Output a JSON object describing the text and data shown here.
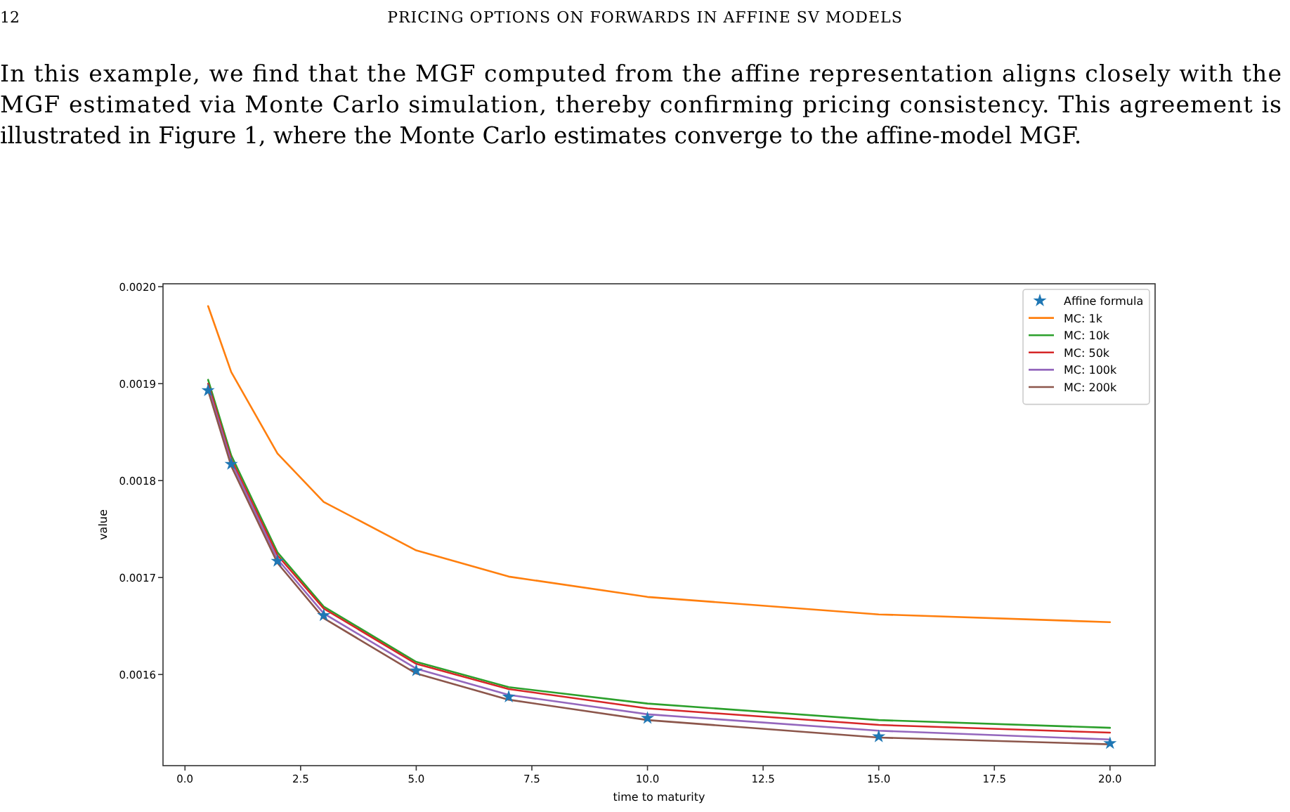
{
  "chart_data": {
    "type": "line",
    "xlabel": "time to maturity",
    "ylabel": "value",
    "annotations": [
      "12",
      "PRICING OPTIONS ON FORWARDS IN AFFINE SV MODELS",
      "In this example, we find that the MGF computed from the affine representation aligns closely with the MGF estimated via Monte Carlo simulation, thereby confirming pricing consistency. This agreement is illustrated in Figure 1, where the Monte Carlo estimates converge to the affine-model MGF."
    ],
    "x": [
      0.5,
      1,
      2,
      3,
      5,
      7,
      10,
      15,
      20
    ],
    "series": [
      {
        "name": "Affine formula",
        "type": "scatter",
        "marker": "star",
        "color": "#1f77b4",
        "values": [
          0.001893,
          0.001817,
          0.001717,
          0.001661,
          0.001604,
          0.001577,
          0.001555,
          0.001536,
          0.001529
        ]
      },
      {
        "name": "MC: 1k",
        "color": "#ff7f0e",
        "values": [
          0.00198,
          0.001912,
          0.001828,
          0.001778,
          0.001728,
          0.001701,
          0.00168,
          0.001662,
          0.001654
        ]
      },
      {
        "name": "MC: 10k",
        "color": "#2ca02c",
        "values": [
          0.001904,
          0.001826,
          0.001726,
          0.00167,
          0.001613,
          0.001587,
          0.00157,
          0.001553,
          0.001545
        ]
      },
      {
        "name": "MC: 50k",
        "color": "#d62728",
        "values": [
          0.0019,
          0.001822,
          0.001723,
          0.001668,
          0.001611,
          0.001585,
          0.001565,
          0.001548,
          0.00154
        ]
      },
      {
        "name": "MC: 100k",
        "color": "#9467bd",
        "values": [
          0.001896,
          0.001819,
          0.001719,
          0.001663,
          0.001606,
          0.001579,
          0.001559,
          0.001542,
          0.001533
        ]
      },
      {
        "name": "MC: 200k",
        "color": "#8c564b",
        "values": [
          0.001893,
          0.001815,
          0.001715,
          0.001658,
          0.001601,
          0.001574,
          0.001553,
          0.001535,
          0.001528
        ]
      }
    ],
    "xlim": [
      -0.475,
      20.975
    ],
    "ylim": [
      0.001506,
      0.002003
    ],
    "xticks": [
      {
        "value": 0,
        "label": "0.0"
      },
      {
        "value": 2.5,
        "label": "2.5"
      },
      {
        "value": 5,
        "label": "5.0"
      },
      {
        "value": 7.5,
        "label": "7.5"
      },
      {
        "value": 10,
        "label": "10.0"
      },
      {
        "value": 12.5,
        "label": "12.5"
      },
      {
        "value": 15,
        "label": "15.0"
      },
      {
        "value": 17.5,
        "label": "17.5"
      },
      {
        "value": 20,
        "label": "20.0"
      }
    ],
    "yticks": [
      {
        "value": 0.0016,
        "label": "0.0016"
      },
      {
        "value": 0.0017,
        "label": "0.0017"
      },
      {
        "value": 0.0018,
        "label": "0.0018"
      },
      {
        "value": 0.0019,
        "label": "0.0019"
      },
      {
        "value": 0.002,
        "label": "0.0020"
      }
    ],
    "legend": "top right",
    "grid": false
  }
}
